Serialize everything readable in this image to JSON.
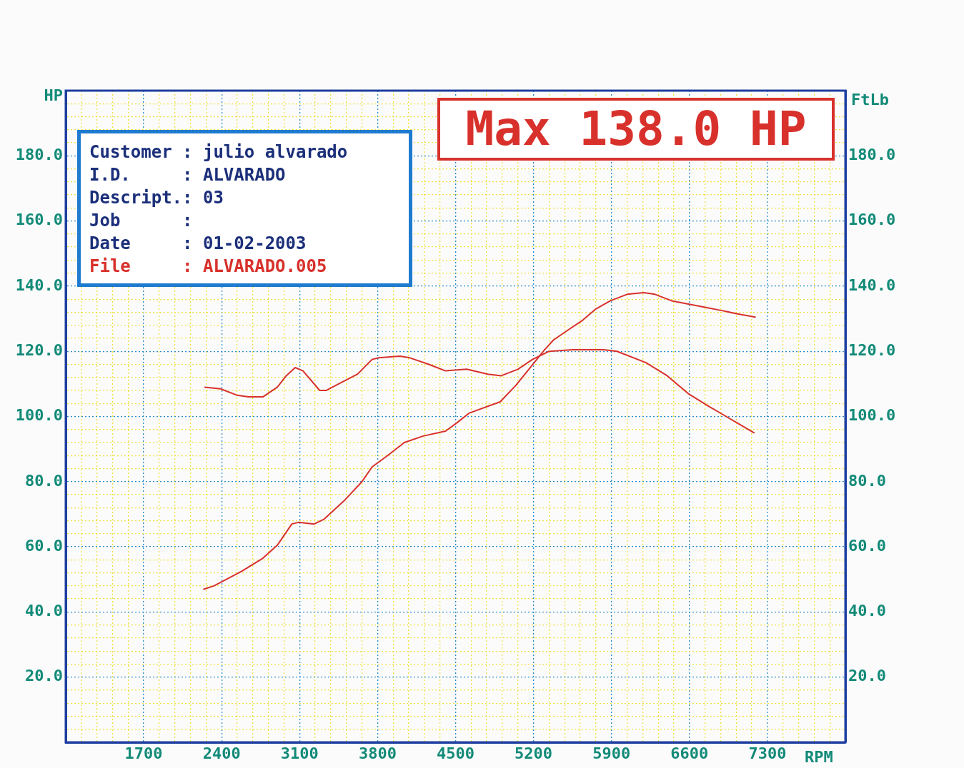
{
  "chart_data": {
    "type": "line",
    "xlabel": "RPM",
    "ylabel": "HP",
    "y2label": "FtLb",
    "annotations": [
      "Max 138.0 HP",
      "Customer : julio alvarado",
      "I.D.     : ALVARADO",
      "Descript.: 03",
      "Job      :",
      "Date     : 01-02-2003",
      "File     : ALVARADO.005"
    ],
    "xlim": [
      1000,
      8000
    ],
    "ylim": [
      0,
      200
    ],
    "y2lim": [
      0,
      200
    ],
    "xticks": [
      {
        "value": 1000,
        "label": null
      },
      {
        "value": 1140,
        "label": null
      },
      {
        "value": 1280,
        "label": null
      },
      {
        "value": 1420,
        "label": null
      },
      {
        "value": 1560,
        "label": null
      },
      1700,
      {
        "value": 1840,
        "label": null
      },
      {
        "value": 1980,
        "label": null
      },
      {
        "value": 2120,
        "label": null
      },
      {
        "value": 2260,
        "label": null
      },
      2400,
      {
        "value": 2540,
        "label": null
      },
      {
        "value": 2680,
        "label": null
      },
      {
        "value": 2820,
        "label": null
      },
      {
        "value": 2960,
        "label": null
      },
      3100,
      {
        "value": 3240,
        "label": null
      },
      {
        "value": 3380,
        "label": null
      },
      {
        "value": 3520,
        "label": null
      },
      {
        "value": 3660,
        "label": null
      },
      3800,
      {
        "value": 3940,
        "label": null
      },
      {
        "value": 4080,
        "label": null
      },
      {
        "value": 4220,
        "label": null
      },
      {
        "value": 4360,
        "label": null
      },
      4500,
      {
        "value": 4640,
        "label": null
      },
      {
        "value": 4780,
        "label": null
      },
      {
        "value": 4920,
        "label": null
      },
      {
        "value": 5060,
        "label": null
      },
      5200,
      {
        "value": 5340,
        "label": null
      },
      {
        "value": 5480,
        "label": null
      },
      {
        "value": 5620,
        "label": null
      },
      {
        "value": 5760,
        "label": null
      },
      5900,
      {
        "value": 6040,
        "label": null
      },
      {
        "value": 6180,
        "label": null
      },
      {
        "value": 6320,
        "label": null
      },
      {
        "value": 6460,
        "label": null
      },
      6600,
      {
        "value": 6740,
        "label": null
      },
      {
        "value": 6880,
        "label": null
      },
      {
        "value": 7020,
        "label": null
      },
      {
        "value": 7160,
        "label": null
      },
      7300,
      {
        "value": 7440,
        "label": null
      },
      {
        "value": 7580,
        "label": null
      },
      {
        "value": 7720,
        "label": null
      },
      {
        "value": 7860,
        "label": null
      },
      {
        "value": 8000,
        "label": null
      }
    ],
    "yticks": [
      {
        "value": 0,
        "label": null
      },
      {
        "value": 4,
        "label": null
      },
      {
        "value": 8,
        "label": null
      },
      {
        "value": 12,
        "label": null
      },
      {
        "value": 16,
        "label": null
      },
      {
        "value": 20,
        "label": "20.0"
      },
      {
        "value": 24,
        "label": null
      },
      {
        "value": 28,
        "label": null
      },
      {
        "value": 32,
        "label": null
      },
      {
        "value": 36,
        "label": null
      },
      {
        "value": 40,
        "label": "40.0"
      },
      {
        "value": 44,
        "label": null
      },
      {
        "value": 48,
        "label": null
      },
      {
        "value": 52,
        "label": null
      },
      {
        "value": 56,
        "label": null
      },
      {
        "value": 60,
        "label": "60.0"
      },
      {
        "value": 64,
        "label": null
      },
      {
        "value": 68,
        "label": null
      },
      {
        "value": 72,
        "label": null
      },
      {
        "value": 76,
        "label": null
      },
      {
        "value": 80,
        "label": "80.0"
      },
      {
        "value": 84,
        "label": null
      },
      {
        "value": 88,
        "label": null
      },
      {
        "value": 92,
        "label": null
      },
      {
        "value": 96,
        "label": null
      },
      {
        "value": 100,
        "label": "100.0"
      },
      {
        "value": 104,
        "label": null
      },
      {
        "value": 108,
        "label": null
      },
      {
        "value": 112,
        "label": null
      },
      {
        "value": 116,
        "label": null
      },
      {
        "value": 120,
        "label": "120.0"
      },
      {
        "value": 124,
        "label": null
      },
      {
        "value": 128,
        "label": null
      },
      {
        "value": 132,
        "label": null
      },
      {
        "value": 136,
        "label": null
      },
      {
        "value": 140,
        "label": "140.0"
      },
      {
        "value": 144,
        "label": null
      },
      {
        "value": 148,
        "label": null
      },
      {
        "value": 152,
        "label": null
      },
      {
        "value": 156,
        "label": null
      },
      {
        "value": 160,
        "label": "160.0"
      },
      {
        "value": 164,
        "label": null
      },
      {
        "value": 168,
        "label": null
      },
      {
        "value": 172,
        "label": null
      },
      {
        "value": 176,
        "label": null
      },
      {
        "value": 180,
        "label": "180.0"
      },
      {
        "value": 184,
        "label": null
      },
      {
        "value": 188,
        "label": null
      },
      {
        "value": 192,
        "label": null
      },
      {
        "value": 196,
        "label": null
      },
      {
        "value": 200,
        "label": null
      }
    ],
    "y2ticks": [
      {
        "value": 20,
        "label": "20.0"
      },
      {
        "value": 40,
        "label": "40.0"
      },
      {
        "value": 60,
        "label": "60.0"
      },
      {
        "value": 80,
        "label": "80.0"
      },
      {
        "value": 100,
        "label": "100.0"
      },
      {
        "value": 120,
        "label": "120.0"
      },
      {
        "value": 140,
        "label": "140.0"
      },
      {
        "value": 160,
        "label": "160.0"
      },
      {
        "value": 180,
        "label": "180.0"
      }
    ],
    "grid": true,
    "legend": false,
    "marker": "none",
    "line_style": "solid",
    "series": [
      {
        "color": "#d8312c",
        "x": [
          2240,
          2330,
          2580,
          2770,
          2900,
          3030,
          3090,
          3230,
          3320,
          3510,
          3660,
          3750,
          3890,
          4040,
          4210,
          4410,
          4510,
          4620,
          4900,
          5040,
          5170,
          5300,
          5380,
          5530,
          5640,
          5760,
          5890,
          6040,
          6190,
          6290,
          6440,
          6590,
          6740,
          6890,
          7030,
          7190
        ],
        "values": [
          47,
          48,
          52.5,
          56.5,
          60.5,
          67,
          67.5,
          67,
          68.5,
          74.5,
          80,
          84.5,
          88,
          92,
          94,
          95.5,
          98,
          101,
          104.5,
          109.5,
          115,
          120.5,
          123.5,
          127,
          129.5,
          133,
          135.5,
          137.5,
          138,
          137.5,
          135.5,
          134.5,
          133.5,
          132.5,
          131.5,
          130.5
        ]
      },
      {
        "color": "#d8312c",
        "x": [
          2250,
          2390,
          2540,
          2640,
          2770,
          2900,
          2980,
          3060,
          3130,
          3280,
          3340,
          3450,
          3620,
          3750,
          3810,
          4000,
          4090,
          4260,
          4410,
          4600,
          4790,
          4910,
          5060,
          5190,
          5340,
          5550,
          5830,
          5950,
          6210,
          6400,
          6590,
          6780,
          6930,
          7180
        ],
        "values": [
          109,
          108.5,
          106.5,
          106,
          106,
          109,
          112.5,
          115,
          114,
          108,
          108,
          110,
          113,
          117.5,
          118,
          118.5,
          118,
          116,
          114,
          114.5,
          113,
          112.5,
          114.5,
          117.5,
          120,
          120.5,
          120.5,
          120,
          116.5,
          112.5,
          107,
          103,
          100,
          95
        ]
      }
    ]
  }
}
